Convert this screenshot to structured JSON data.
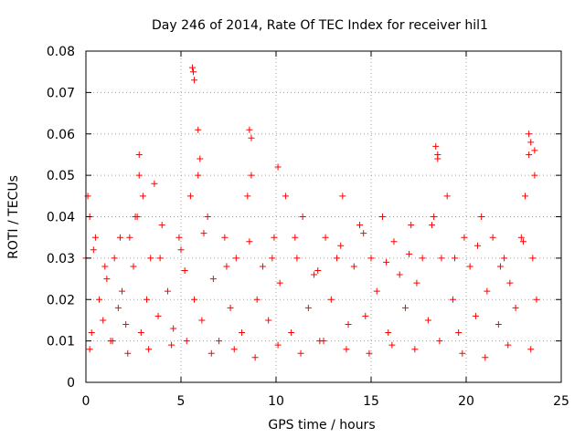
{
  "chart_data": {
    "type": "scatter",
    "title": "Day 246 of 2014, Rate Of TEC Index for receiver hil1",
    "xlabel": "GPS time / hours",
    "ylabel": "ROTI / TECUs",
    "xlim": [
      0,
      25
    ],
    "ylim": [
      0,
      0.08
    ],
    "xticks": [
      "0",
      "5",
      "10",
      "15",
      "20",
      "25"
    ],
    "yticks": [
      "0",
      "0.01",
      "0.02",
      "0.03",
      "0.04",
      "0.05",
      "0.06",
      "0.07",
      "0.08"
    ],
    "grid": true,
    "marker": "+",
    "color": "#ff0000",
    "series": [
      {
        "name": "ROTI",
        "x": [
          0.0,
          0.1,
          0.2,
          0.3,
          0.5,
          0.7,
          0.9,
          1.1,
          1.3,
          1.5,
          1.7,
          1.9,
          2.1,
          2.3,
          2.5,
          2.6,
          2.8,
          2.9,
          3.0,
          3.2,
          3.4,
          3.6,
          3.8,
          4.0,
          4.3,
          4.6,
          4.9,
          5.2,
          5.5,
          5.7,
          5.9,
          6.1,
          6.4,
          6.7,
          7.0,
          7.3,
          7.6,
          7.9,
          8.2,
          8.5,
          8.7,
          9.0,
          9.3,
          9.6,
          9.9,
          10.2,
          10.5,
          10.8,
          11.1,
          11.4,
          11.7,
          12.0,
          12.3,
          12.6,
          12.9,
          13.2,
          13.5,
          13.8,
          14.1,
          14.4,
          14.7,
          15.0,
          15.3,
          15.6,
          15.9,
          16.2,
          16.5,
          16.8,
          17.1,
          17.4,
          17.7,
          18.0,
          18.3,
          18.5,
          18.7,
          19.0,
          19.3,
          19.6,
          19.9,
          20.2,
          20.5,
          20.8,
          21.1,
          21.4,
          21.7,
          22.0,
          22.3,
          22.6,
          22.9,
          23.1,
          23.3,
          23.5,
          23.6,
          23.7,
          0.2,
          1.4,
          2.2,
          3.3,
          4.5,
          5.3,
          6.6,
          7.8,
          8.9,
          10.1,
          11.3,
          12.5,
          13.7,
          14.9,
          16.1,
          17.3,
          18.6,
          19.8,
          21.0,
          22.2,
          23.4,
          0.4,
          1.0,
          1.8,
          2.7,
          3.9,
          5.0,
          6.2,
          7.4,
          8.6,
          9.8,
          11.0,
          12.2,
          13.4,
          14.6,
          15.8,
          17.0,
          18.2,
          19.4,
          20.6,
          21.8,
          23.0,
          5.6,
          5.65,
          5.7,
          5.9,
          6.0,
          8.6,
          8.7,
          10.1,
          18.4,
          18.5,
          23.3,
          23.4,
          2.8,
          23.6
        ],
        "y": [
          0.03,
          0.045,
          0.04,
          0.012,
          0.035,
          0.02,
          0.015,
          0.025,
          0.01,
          0.03,
          0.018,
          0.022,
          0.014,
          0.035,
          0.028,
          0.04,
          0.05,
          0.012,
          0.045,
          0.02,
          0.03,
          0.048,
          0.016,
          0.038,
          0.022,
          0.013,
          0.035,
          0.027,
          0.045,
          0.02,
          0.05,
          0.015,
          0.04,
          0.025,
          0.01,
          0.035,
          0.018,
          0.03,
          0.012,
          0.045,
          0.05,
          0.02,
          0.028,
          0.015,
          0.035,
          0.024,
          0.045,
          0.012,
          0.03,
          0.04,
          0.018,
          0.026,
          0.01,
          0.035,
          0.02,
          0.03,
          0.045,
          0.014,
          0.028,
          0.038,
          0.016,
          0.03,
          0.022,
          0.04,
          0.012,
          0.034,
          0.026,
          0.018,
          0.038,
          0.024,
          0.03,
          0.015,
          0.04,
          0.055,
          0.03,
          0.045,
          0.02,
          0.012,
          0.035,
          0.028,
          0.016,
          0.04,
          0.022,
          0.035,
          0.014,
          0.03,
          0.024,
          0.018,
          0.035,
          0.045,
          0.055,
          0.03,
          0.05,
          0.02,
          0.008,
          0.01,
          0.007,
          0.008,
          0.009,
          0.01,
          0.007,
          0.008,
          0.006,
          0.009,
          0.007,
          0.01,
          0.008,
          0.007,
          0.009,
          0.008,
          0.01,
          0.007,
          0.006,
          0.009,
          0.008,
          0.032,
          0.028,
          0.035,
          0.04,
          0.03,
          0.032,
          0.036,
          0.028,
          0.034,
          0.03,
          0.035,
          0.027,
          0.033,
          0.036,
          0.029,
          0.031,
          0.038,
          0.03,
          0.033,
          0.028,
          0.034,
          0.076,
          0.075,
          0.073,
          0.061,
          0.054,
          0.061,
          0.059,
          0.052,
          0.057,
          0.054,
          0.06,
          0.058,
          0.055,
          0.056
        ]
      }
    ]
  }
}
